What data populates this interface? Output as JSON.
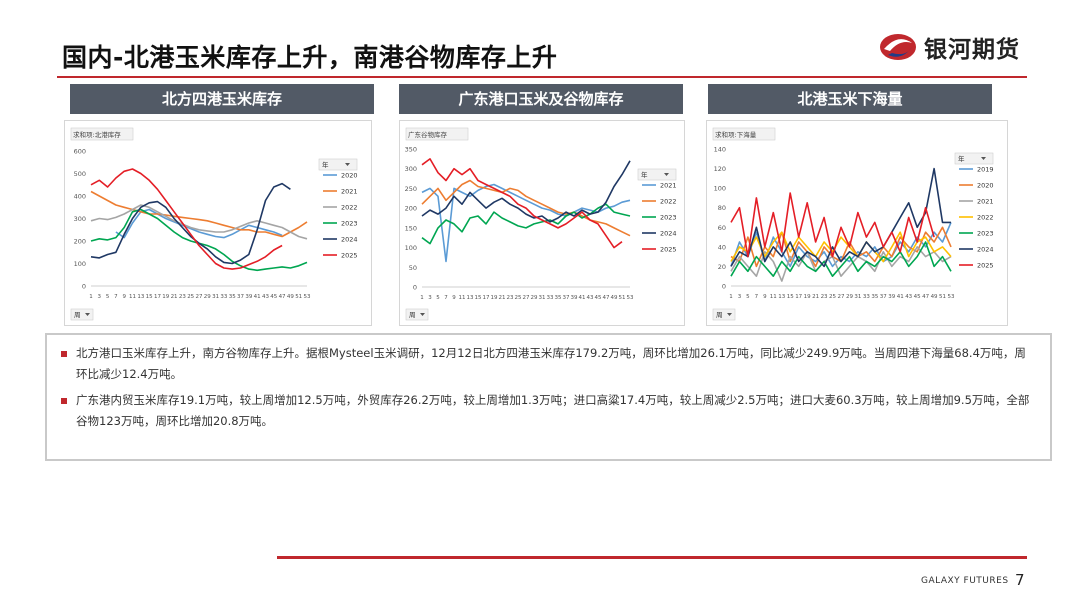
{
  "title": "国内-北港玉米库存上升，南港谷物库存上升",
  "logo": {
    "text": "银河期货"
  },
  "footer": {
    "brand": "GALAXY FUTURES",
    "page": "7"
  },
  "colors": {
    "accent": "#c0282d",
    "panel_header": "#525a66"
  },
  "panels": [
    {
      "header": "北方四港玉米库存",
      "field_label": "求和项:北港库存",
      "legend_title": "年",
      "filter_label": "周",
      "x_ticks": [
        "1",
        "3",
        "5",
        "7",
        "9",
        "11",
        "13",
        "15",
        "17",
        "19",
        "21",
        "23",
        "25",
        "27",
        "29",
        "31",
        "33",
        "35",
        "37",
        "39",
        "41",
        "43",
        "45",
        "47",
        "49",
        "51",
        "53"
      ]
    },
    {
      "header": "广东港口玉米及谷物库存",
      "field_label": "广东谷物库存",
      "legend_title": "年",
      "filter_label": "周",
      "x_ticks": [
        "1",
        "3",
        "5",
        "7",
        "9",
        "11",
        "13",
        "15",
        "17",
        "19",
        "21",
        "23",
        "25",
        "27",
        "29",
        "31",
        "33",
        "35",
        "37",
        "39",
        "41",
        "43",
        "45",
        "47",
        "49",
        "51",
        "53"
      ]
    },
    {
      "header": "北港玉米下海量",
      "field_label": "求和项:下海量",
      "legend_title": "年",
      "filter_label": "周",
      "x_ticks": [
        "1",
        "3",
        "5",
        "7",
        "9",
        "11",
        "13",
        "15",
        "17",
        "19",
        "21",
        "23",
        "25",
        "27",
        "29",
        "31",
        "33",
        "35",
        "37",
        "39",
        "41",
        "43",
        "45",
        "47",
        "49",
        "51",
        "53"
      ]
    }
  ],
  "chart_data": [
    {
      "type": "line",
      "title": "北方四港玉米库存",
      "ylim": [
        0,
        600
      ],
      "yticks": [
        0,
        100,
        200,
        300,
        400,
        500,
        600
      ],
      "x": [
        1,
        3,
        5,
        7,
        9,
        11,
        13,
        15,
        17,
        19,
        21,
        23,
        25,
        27,
        29,
        31,
        33,
        35,
        37,
        39,
        41,
        43,
        45,
        47,
        49,
        51,
        53
      ],
      "series": [
        {
          "name": "2020",
          "color": "#5b9bd5",
          "values": [
            null,
            null,
            null,
            240,
            215,
            280,
            330,
            340,
            320,
            300,
            285,
            270,
            255,
            240,
            230,
            220,
            215,
            230,
            250,
            270,
            260,
            250,
            240,
            225,
            null,
            null,
            null
          ]
        },
        {
          "name": "2021",
          "color": "#ed7d31",
          "values": [
            420,
            400,
            380,
            360,
            350,
            340,
            330,
            320,
            320,
            315,
            310,
            305,
            300,
            295,
            290,
            280,
            270,
            260,
            250,
            250,
            240,
            240,
            230,
            220,
            240,
            260,
            285
          ]
        },
        {
          "name": "2022",
          "color": "#a5a5a5",
          "values": [
            290,
            300,
            295,
            305,
            320,
            340,
            360,
            350,
            330,
            310,
            290,
            275,
            260,
            250,
            245,
            240,
            240,
            250,
            265,
            280,
            290,
            280,
            270,
            260,
            240,
            220,
            210
          ]
        },
        {
          "name": "2023",
          "color": "#00a651",
          "values": [
            200,
            210,
            205,
            215,
            260,
            330,
            340,
            320,
            300,
            270,
            240,
            215,
            200,
            190,
            180,
            165,
            140,
            110,
            90,
            75,
            70,
            75,
            80,
            85,
            80,
            90,
            105
          ]
        },
        {
          "name": "2024",
          "color": "#1f3864",
          "values": [
            130,
            125,
            140,
            150,
            230,
            300,
            350,
            370,
            375,
            350,
            300,
            260,
            220,
            190,
            165,
            130,
            105,
            100,
            115,
            140,
            250,
            380,
            440,
            455,
            430,
            null,
            null
          ]
        },
        {
          "name": "2025",
          "color": "#e41e26",
          "values": [
            450,
            470,
            440,
            480,
            510,
            520,
            500,
            470,
            430,
            380,
            330,
            280,
            230,
            180,
            140,
            100,
            80,
            75,
            80,
            95,
            110,
            130,
            160,
            180,
            null,
            null,
            null
          ]
        }
      ]
    },
    {
      "type": "line",
      "title": "广东港口玉米及谷物库存",
      "ylim": [
        0,
        350
      ],
      "yticks": [
        0,
        50,
        100,
        150,
        200,
        250,
        300,
        350
      ],
      "x": [
        1,
        3,
        5,
        7,
        9,
        11,
        13,
        15,
        17,
        19,
        21,
        23,
        25,
        27,
        29,
        31,
        33,
        35,
        37,
        39,
        41,
        43,
        45,
        47,
        49,
        51,
        53
      ],
      "series": [
        {
          "name": "2021",
          "color": "#5b9bd5",
          "values": [
            240,
            250,
            230,
            65,
            250,
            240,
            230,
            245,
            255,
            260,
            250,
            240,
            230,
            220,
            210,
            200,
            195,
            185,
            180,
            190,
            200,
            195,
            190,
            200,
            205,
            215,
            220
          ]
        },
        {
          "name": "2022",
          "color": "#ed7d31",
          "values": [
            210,
            230,
            250,
            220,
            240,
            260,
            270,
            255,
            250,
            245,
            240,
            250,
            245,
            230,
            220,
            210,
            200,
            190,
            185,
            190,
            180,
            170,
            165,
            160,
            150,
            140,
            130
          ]
        },
        {
          "name": "2023",
          "color": "#00a651",
          "values": [
            125,
            110,
            150,
            170,
            160,
            140,
            175,
            180,
            160,
            190,
            175,
            165,
            155,
            150,
            160,
            165,
            170,
            160,
            180,
            190,
            175,
            185,
            200,
            210,
            190,
            185,
            180
          ]
        },
        {
          "name": "2024",
          "color": "#1f3864",
          "values": [
            180,
            195,
            185,
            200,
            230,
            210,
            240,
            220,
            200,
            215,
            225,
            210,
            200,
            185,
            175,
            180,
            165,
            175,
            190,
            180,
            195,
            185,
            190,
            215,
            255,
            285,
            320
          ]
        },
        {
          "name": "2025",
          "color": "#e41e26",
          "values": [
            310,
            325,
            290,
            270,
            300,
            285,
            300,
            270,
            260,
            250,
            240,
            230,
            210,
            200,
            180,
            170,
            160,
            150,
            160,
            175,
            190,
            170,
            160,
            130,
            100,
            115,
            null
          ]
        }
      ]
    },
    {
      "type": "line",
      "title": "北港玉米下海量",
      "ylim": [
        0,
        140
      ],
      "yticks": [
        0,
        20,
        40,
        60,
        80,
        100,
        120,
        140
      ],
      "x": [
        1,
        3,
        5,
        7,
        9,
        11,
        13,
        15,
        17,
        19,
        21,
        23,
        25,
        27,
        29,
        31,
        33,
        35,
        37,
        39,
        41,
        43,
        45,
        47,
        49,
        51,
        53
      ],
      "series": [
        {
          "name": "2019",
          "color": "#5b9bd5",
          "values": [
            20,
            45,
            30,
            55,
            25,
            50,
            35,
            20,
            40,
            30,
            25,
            35,
            20,
            30,
            25,
            35,
            30,
            40,
            25,
            30,
            45,
            35,
            50,
            40,
            55,
            45,
            65
          ]
        },
        {
          "name": "2020",
          "color": "#ed7d31",
          "values": [
            30,
            25,
            50,
            20,
            40,
            30,
            55,
            25,
            45,
            35,
            20,
            40,
            30,
            25,
            45,
            30,
            35,
            25,
            40,
            30,
            50,
            40,
            35,
            55,
            45,
            60,
            40
          ]
        },
        {
          "name": "2021",
          "color": "#a5a5a5",
          "values": [
            15,
            30,
            20,
            10,
            35,
            25,
            5,
            30,
            20,
            35,
            15,
            25,
            30,
            10,
            20,
            30,
            25,
            15,
            35,
            20,
            30,
            25,
            40,
            30,
            35,
            25,
            30
          ]
        },
        {
          "name": "2022",
          "color": "#ffc000",
          "values": [
            25,
            40,
            35,
            50,
            30,
            45,
            55,
            35,
            50,
            40,
            30,
            45,
            35,
            50,
            40,
            30,
            45,
            35,
            25,
            40,
            55,
            30,
            45,
            50,
            35,
            40,
            30
          ]
        },
        {
          "name": "2023",
          "color": "#00a651",
          "values": [
            10,
            25,
            15,
            30,
            20,
            10,
            25,
            15,
            30,
            20,
            15,
            25,
            10,
            20,
            30,
            15,
            25,
            20,
            30,
            25,
            35,
            20,
            30,
            45,
            20,
            30,
            15
          ]
        },
        {
          "name": "2024",
          "color": "#1f3864",
          "values": [
            20,
            35,
            30,
            60,
            25,
            40,
            30,
            45,
            25,
            35,
            30,
            20,
            40,
            25,
            35,
            30,
            45,
            35,
            40,
            55,
            70,
            85,
            60,
            75,
            120,
            65,
            65
          ]
        },
        {
          "name": "2025",
          "color": "#e41e26",
          "values": [
            65,
            80,
            30,
            90,
            40,
            75,
            35,
            95,
            50,
            85,
            45,
            70,
            30,
            60,
            40,
            75,
            50,
            65,
            40,
            55,
            35,
            70,
            45,
            80,
            50,
            null,
            null
          ]
        }
      ]
    }
  ],
  "bullets": [
    "北方港口玉米库存上升，南方谷物库存上升。据根Mysteel玉米调研，12月12日北方四港玉米库存179.2万吨，周环比增加26.1万吨，同比减少249.9万吨。当周四港下海量68.4万吨，周环比减少12.4万吨。",
    "广东港内贸玉米库存19.1万吨，较上周增加12.5万吨，外贸库存26.2万吨，较上周增加1.3万吨；进口高粱17.4万吨，较上周减少2.5万吨；进口大麦60.3万吨，较上周增加9.5万吨，全部谷物123万吨，周环比增加20.8万吨。"
  ]
}
